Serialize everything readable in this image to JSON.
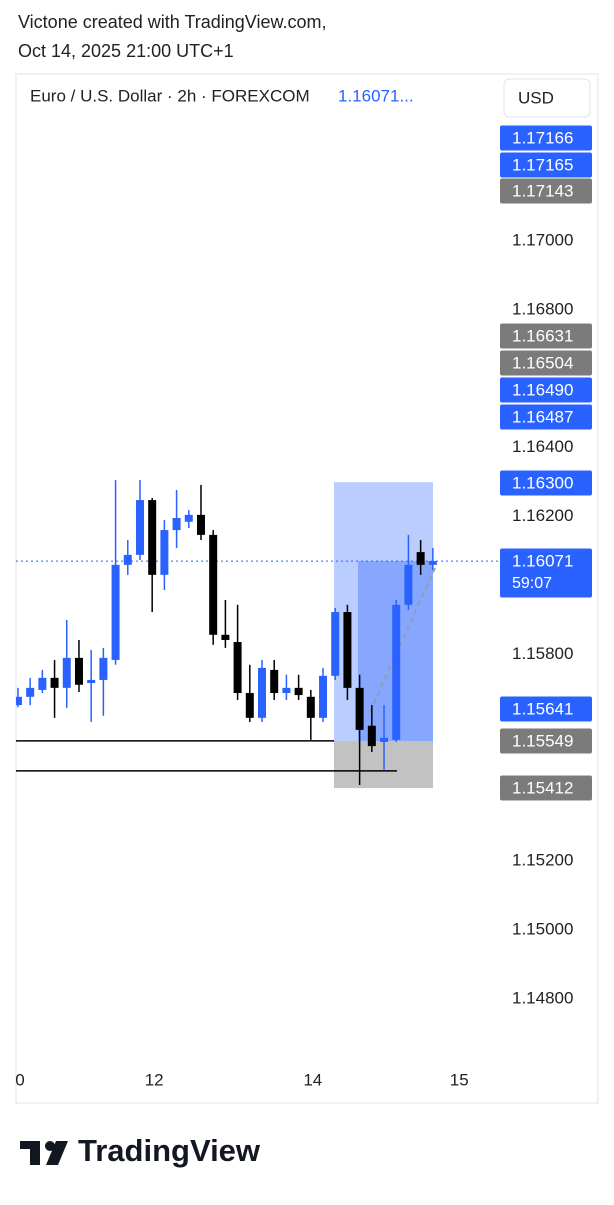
{
  "header": {
    "line1": "Victone created with TradingView.com,",
    "line2": "Oct 14, 2025 21:00 UTC+1"
  },
  "footer": {
    "brand": "TradingView"
  },
  "chart_data": {
    "type": "candlestick",
    "title": "Euro / U.S. Dollar · 2h · FOREXCOM",
    "last_price_label": "1.16071...",
    "currency": "USD",
    "up_color": "#2962ff",
    "down_color": "#000000",
    "grid": false,
    "open": [
      1.15653,
      1.15677,
      1.15697,
      1.15732,
      1.15703,
      1.1579,
      1.15717,
      1.15726,
      1.15784,
      1.1606,
      1.16089,
      1.16248,
      1.16031,
      1.16161,
      1.16185,
      1.16205,
      1.16147,
      1.15857,
      1.15836,
      1.15688,
      1.15616,
      1.15755,
      1.15688,
      1.15703,
      1.15677,
      1.15616,
      1.15738,
      1.15923,
      1.15703,
      1.15593,
      1.15546,
      1.15552,
      1.15944,
      1.16097,
      1.1606
    ],
    "high": [
      1.15703,
      1.15732,
      1.15755,
      1.15784,
      1.159,
      1.15842,
      1.15813,
      1.15819,
      1.16306,
      1.16132,
      1.16306,
      1.16254,
      1.1619,
      1.16277,
      1.16219,
      1.16292,
      1.16161,
      1.15958,
      1.15944,
      1.1577,
      1.15784,
      1.15784,
      1.15741,
      1.15741,
      1.15697,
      1.15761,
      1.15935,
      1.15944,
      1.15741,
      1.15653,
      1.15653,
      1.15958,
      1.16147,
      1.16132,
      1.16109
    ],
    "low": [
      1.15647,
      1.15653,
      1.15688,
      1.15616,
      1.15645,
      1.15691,
      1.15604,
      1.15622,
      1.1577,
      1.16031,
      1.16074,
      1.15923,
      1.15987,
      1.16109,
      1.16167,
      1.16132,
      1.15828,
      1.15819,
      1.15668,
      1.15604,
      1.15604,
      1.15668,
      1.15668,
      1.15668,
      1.15552,
      1.15604,
      1.15726,
      1.15668,
      1.15421,
      1.15517,
      1.15465,
      1.15546,
      1.15929,
      1.16031,
      1.16045
    ],
    "close": [
      1.15677,
      1.15703,
      1.15732,
      1.15703,
      1.1579,
      1.15712,
      1.15726,
      1.1579,
      1.1606,
      1.16089,
      1.16248,
      1.16031,
      1.16161,
      1.16196,
      1.16205,
      1.16147,
      1.15857,
      1.15842,
      1.15688,
      1.15616,
      1.15761,
      1.15688,
      1.15703,
      1.15682,
      1.15616,
      1.15738,
      1.15923,
      1.15703,
      1.15581,
      1.15534,
      1.15558,
      1.15944,
      1.1606,
      1.1606,
      1.16071
    ],
    "xlim": [
      -0.16,
      39.34
    ],
    "xticks": [
      {
        "value": 0,
        "label": "0"
      },
      {
        "value": 11,
        "label": "12"
      },
      {
        "value": 24,
        "label": "14"
      },
      {
        "value": 36,
        "label": "15"
      }
    ],
    "ylim": [
      1.1462,
      1.1748
    ],
    "yticks": [
      {
        "value": 1.17,
        "label": "1.17000"
      },
      {
        "value": 1.168,
        "label": "1.16800"
      },
      {
        "value": 1.164,
        "label": "1.16400"
      },
      {
        "value": 1.162,
        "label": "1.16200"
      },
      {
        "value": 1.158,
        "label": "1.15800"
      },
      {
        "value": 1.152,
        "label": "1.15200"
      },
      {
        "value": 1.15,
        "label": "1.15000"
      },
      {
        "value": 1.148,
        "label": "1.14800"
      }
    ],
    "current_price": 1.16071,
    "position": {
      "target": 1.163,
      "entry": 1.15549,
      "stop": 1.15412
    },
    "hlines": [
      1.15549,
      1.15462
    ],
    "price_tags": [
      {
        "label": "1.17166",
        "color": "#2962ff"
      },
      {
        "label": "1.17165",
        "color": "#2962ff"
      },
      {
        "label": "1.17143",
        "color": "#7b7b7b"
      },
      {
        "label": "1.16631",
        "color": "#7b7b7b"
      },
      {
        "label": "1.16504",
        "color": "#7b7b7b"
      },
      {
        "label": "1.16490",
        "color": "#2962ff"
      },
      {
        "label": "1.16487",
        "color": "#2962ff"
      },
      {
        "label": "1.16300",
        "color": "#2962ff"
      },
      {
        "label": "1.16071",
        "sublabel": "59:07",
        "color": "#2962ff"
      },
      {
        "label": "1.15641",
        "color": "#2962ff"
      },
      {
        "label": "1.15549",
        "color": "#7b7b7b"
      },
      {
        "label": "1.15412",
        "color": "#7b7b7b"
      }
    ]
  }
}
